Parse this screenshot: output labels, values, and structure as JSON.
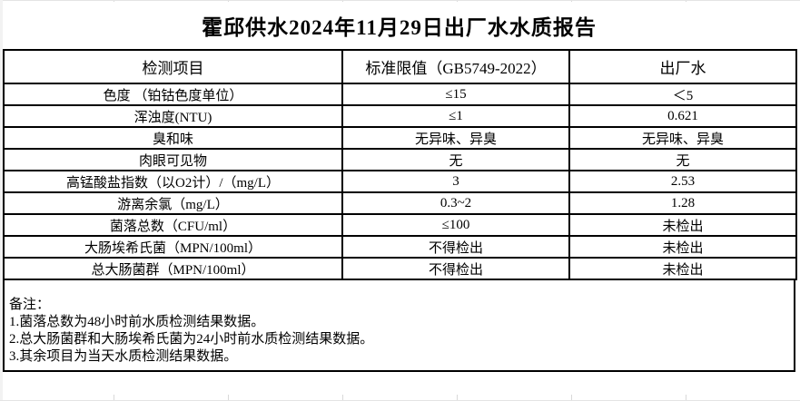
{
  "title": "霍邱供水2024年11月29日出厂水水质报告",
  "table": {
    "columns": [
      "检测项目",
      "标准限值（GB5749-2022）",
      "出厂水"
    ],
    "rows": [
      {
        "item": "色度 （铂钴色度单位）",
        "limit": "≤15",
        "value": "＜5"
      },
      {
        "item": "浑浊度(NTU)",
        "limit": "≤1",
        "value": "0.621"
      },
      {
        "item": "臭和味",
        "limit": "无异味、异臭",
        "value": "无异味、异臭"
      },
      {
        "item": "肉眼可见物",
        "limit": "无",
        "value": "无"
      },
      {
        "item": "高锰酸盐指数（以O2计）/（mg/L）",
        "limit": "3",
        "value": "2.53"
      },
      {
        "item": "游离余氯（mg/L）",
        "limit": "0.3~2",
        "value": "1.28"
      },
      {
        "item": "菌落总数（CFU/ml）",
        "limit": "≤100",
        "value": "未检出"
      },
      {
        "item": "大肠埃希氏菌（MPN/100ml）",
        "limit": "不得检出",
        "value": "未检出"
      },
      {
        "item": "总大肠菌群（MPN/100ml）",
        "limit": "不得检出",
        "value": "未检出"
      }
    ]
  },
  "notes": {
    "label": "备注：",
    "items": [
      "1.菌落总数为48小时前水质检测结果数据。",
      "2.总大肠菌群和大肠埃希氏菌为24小时前水质检测结果数据。",
      "3.其余项目为当天水质检测结果数据。"
    ]
  },
  "colors": {
    "border": "#000000",
    "text": "#000000",
    "background": "#ffffff",
    "gridline": "#d9d9d9"
  }
}
